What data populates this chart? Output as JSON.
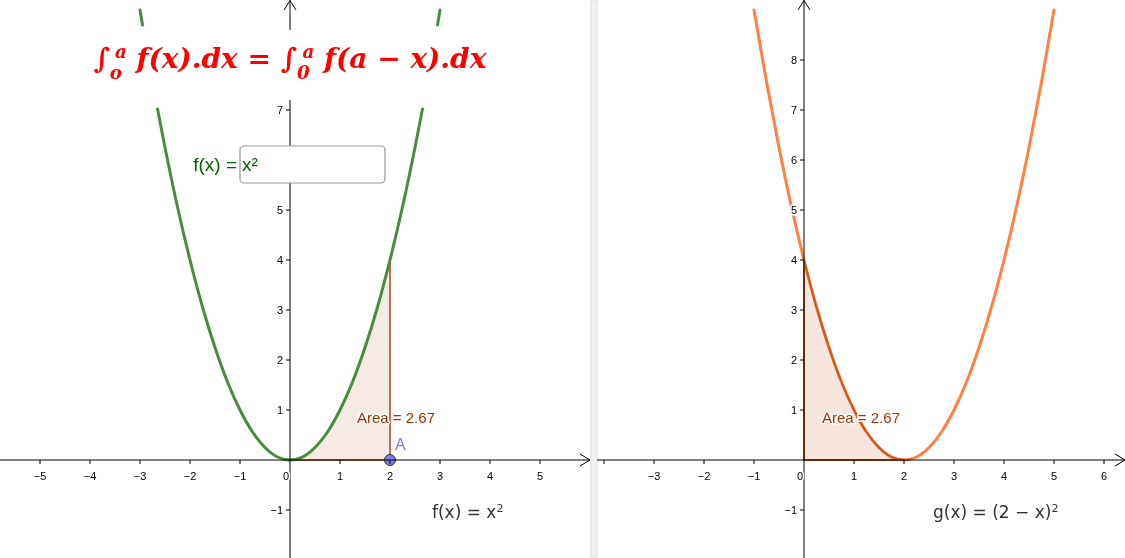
{
  "chart_data": [
    {
      "type": "line",
      "title": "∫$_{o}$$^{a}$ f(x).dx = ∫$_{0}$$^{a}$ f(a − x).dx",
      "xlim": [
        -5.8,
        6.0
      ],
      "ylim": [
        -1.96,
        9.2
      ],
      "xticks": [
        -5,
        -4,
        -3,
        -2,
        -1,
        0,
        1,
        2,
        3,
        4,
        5
      ],
      "yticks": [
        -1,
        1,
        2,
        3,
        4,
        5,
        7
      ],
      "series": [
        {
          "type": "area",
          "color": "#c0704f",
          "x": [
            0,
            0.25,
            0.5,
            0.75,
            1,
            1.25,
            1.5,
            1.75,
            2
          ],
          "values": [
            0,
            0.06,
            0.25,
            0.56,
            1,
            1.56,
            2.25,
            3.06,
            4
          ]
        },
        {
          "color": "#4a8c3f",
          "x": [
            -3,
            -2.95,
            -2.8,
            -2.65,
            -2.5,
            -2.25,
            -2,
            -1.75,
            -1.5,
            -1.25,
            -1,
            -0.75,
            -0.5,
            -0.25,
            0,
            0.25,
            0.5,
            0.75,
            1,
            1.25,
            1.5,
            1.75,
            2,
            2.25,
            2.5,
            2.65,
            2.8,
            2.95,
            3
          ],
          "values": [
            9,
            8.7,
            null,
            7.02,
            6.25,
            5.06,
            4,
            3.06,
            2.25,
            1.56,
            1,
            0.56,
            0.25,
            0.06,
            0,
            0.06,
            0.25,
            0.56,
            1,
            1.56,
            2.25,
            3.06,
            4,
            5.06,
            6.25,
            7.02,
            null,
            8.7,
            9
          ]
        },
        {
          "type": "scatter",
          "name": "A",
          "color": "#7b7bef",
          "x": [
            2
          ],
          "values": [
            0
          ]
        }
      ],
      "annotations": [
        "f(x) =",
        "x²",
        "Area = 2.67",
        "f(x) = x$^{2}$"
      ]
    },
    {
      "type": "line",
      "xlim": [
        -4.14,
        6.42
      ],
      "ylim": [
        -1.96,
        9.2
      ],
      "xticks": [
        {
          "value": -4,
          "label": null
        },
        -3,
        -2,
        -1,
        0,
        1,
        2,
        3,
        4,
        5,
        6
      ],
      "yticks": [
        -1,
        1,
        2,
        3,
        4,
        5,
        6,
        7,
        8
      ],
      "series": [
        {
          "color": "#ff8040",
          "x": [
            -1,
            -0.75,
            -0.5,
            -0.25,
            0,
            0.25,
            0.5,
            0.75,
            1,
            1.25,
            1.5,
            1.75,
            2,
            2.25,
            2.5,
            2.75,
            3,
            3.25,
            3.5,
            3.75,
            4,
            4.25,
            4.5,
            4.75,
            5
          ],
          "values": [
            9,
            7.56,
            6.25,
            5.06,
            4,
            3.06,
            2.25,
            1.56,
            1,
            0.56,
            0.25,
            0.06,
            0,
            0.06,
            0.25,
            0.56,
            1,
            1.56,
            2.25,
            3.06,
            4,
            5.06,
            6.25,
            7.56,
            9
          ]
        },
        {
          "type": "area",
          "color": "#c85a20",
          "x": [
            0,
            0.25,
            0.5,
            0.75,
            1,
            1.25,
            1.5,
            1.75,
            2
          ],
          "values": [
            4,
            3.06,
            2.25,
            1.56,
            1,
            0.56,
            0.25,
            0.06,
            0
          ]
        }
      ],
      "annotations": [
        "Area = 2.67",
        "g(x) = (2 − x)$^{2}$"
      ]
    }
  ]
}
